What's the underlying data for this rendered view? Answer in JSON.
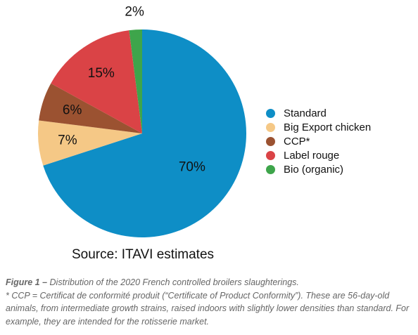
{
  "chart_data": {
    "type": "pie",
    "categories": [
      "Standard",
      "Big Export chicken",
      "CCP*",
      "Label rouge",
      "Bio (organic)"
    ],
    "values": [
      70,
      7,
      6,
      15,
      2
    ],
    "data_labels": [
      "70%",
      "7%",
      "6%",
      "15%",
      "2%"
    ],
    "colors": [
      "#0e8ec6",
      "#f5c886",
      "#9b5231",
      "#da4346",
      "#3ea54b"
    ],
    "legend_position": "right",
    "start": "top",
    "direction": "clockwise"
  },
  "source": "Source: ITAVI estimates",
  "caption": {
    "label": "Figure 1 –",
    "text": " Distribution of the 2020 French controlled broilers slaughterings.",
    "note": "* CCP = Certificat de conformité produit  (“Certificate of Product Conformity”). These are 56-day-old animals, from intermediate growth strains, raised indoors with slightly lower densities than standard. For example, they are intended for the rotisserie market."
  }
}
